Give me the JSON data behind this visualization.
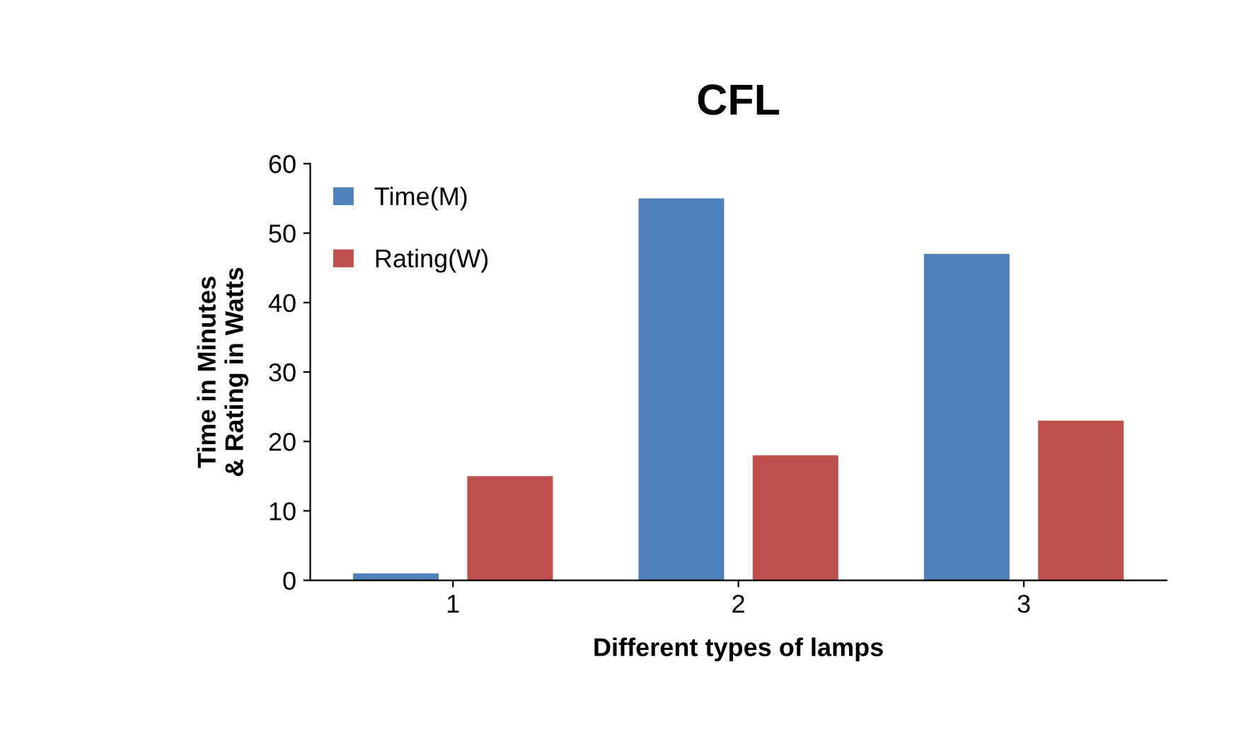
{
  "chart_data": {
    "type": "bar",
    "title": "CFL",
    "xlabel": "Different types of lamps",
    "ylabel": "Time in Minutes\n& Rating in Watts",
    "categories": [
      "1",
      "2",
      "3"
    ],
    "series": [
      {
        "name": "Time(M)",
        "color": "#4f81bd",
        "values": [
          1,
          55,
          47
        ]
      },
      {
        "name": "Rating(W)",
        "color": "#c0504d",
        "values": [
          15,
          18,
          23
        ]
      }
    ],
    "ylim": [
      0,
      60
    ],
    "yticks": [
      0,
      10,
      20,
      30,
      40,
      50,
      60
    ],
    "legend": "top left",
    "grid": false
  }
}
